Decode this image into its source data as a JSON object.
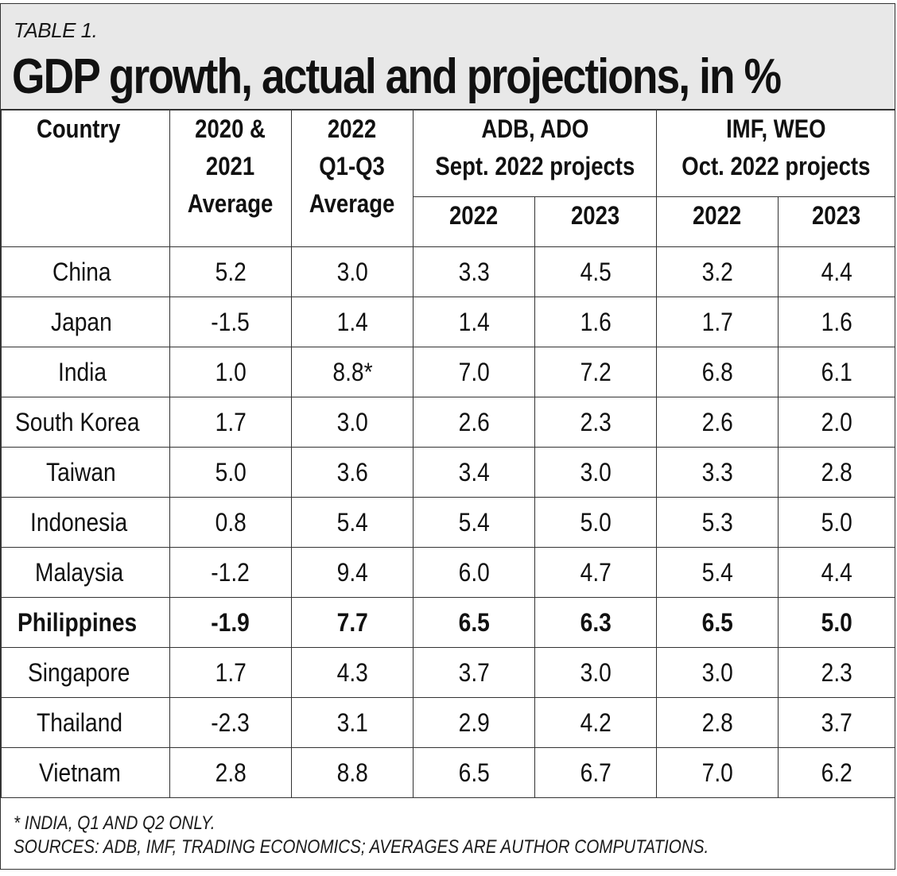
{
  "label": "TABLE 1.",
  "title": "GDP growth, actual and projections, in %",
  "headers": {
    "country": "Country",
    "avg2021": [
      "2020 &",
      "2021",
      "Average"
    ],
    "avg2022": [
      "2022",
      "Q1-Q3",
      "Average"
    ],
    "adb": [
      "ADB, ADO",
      "Sept. 2022 projects"
    ],
    "imf": [
      "IMF, WEO",
      "Oct. 2022 projects"
    ],
    "years": [
      "2022",
      "2023",
      "2022",
      "2023"
    ]
  },
  "rows": [
    {
      "country": "China",
      "values": [
        "5.2",
        "3.0",
        "3.3",
        "4.5",
        "3.2",
        "4.4"
      ],
      "bold": false
    },
    {
      "country": "Japan",
      "values": [
        "-1.5",
        "1.4",
        "1.4",
        "1.6",
        "1.7",
        "1.6"
      ],
      "bold": false
    },
    {
      "country": "India",
      "values": [
        "1.0",
        "8.8*",
        "7.0",
        "7.2",
        "6.8",
        "6.1"
      ],
      "bold": false
    },
    {
      "country": "South Korea",
      "values": [
        "1.7",
        "3.0",
        "2.6",
        "2.3",
        "2.6",
        "2.0"
      ],
      "bold": false
    },
    {
      "country": "Taiwan",
      "values": [
        "5.0",
        "3.6",
        "3.4",
        "3.0",
        "3.3",
        "2.8"
      ],
      "bold": false
    },
    {
      "country": "Indonesia",
      "values": [
        "0.8",
        "5.4",
        "5.4",
        "5.0",
        "5.3",
        "5.0"
      ],
      "bold": false
    },
    {
      "country": "Malaysia",
      "values": [
        "-1.2",
        "9.4",
        "6.0",
        "4.7",
        "5.4",
        "4.4"
      ],
      "bold": false
    },
    {
      "country": "Philippines",
      "values": [
        "-1.9",
        "7.7",
        "6.5",
        "6.3",
        "6.5",
        "5.0"
      ],
      "bold": true
    },
    {
      "country": "Singapore",
      "values": [
        "1.7",
        "4.3",
        "3.7",
        "3.0",
        "3.0",
        "2.3"
      ],
      "bold": false
    },
    {
      "country": "Thailand",
      "values": [
        "-2.3",
        "3.1",
        "2.9",
        "4.2",
        "2.8",
        "3.7"
      ],
      "bold": false
    },
    {
      "country": "Vietnam",
      "values": [
        "2.8",
        "8.8",
        "6.5",
        "6.7",
        "7.0",
        "6.2"
      ],
      "bold": false
    }
  ],
  "notes": [
    "* INDIA, Q1 AND Q2 ONLY.",
    "SOURCES: ADB, IMF, TRADING ECONOMICS; AVERAGES ARE AUTHOR COMPUTATIONS."
  ]
}
